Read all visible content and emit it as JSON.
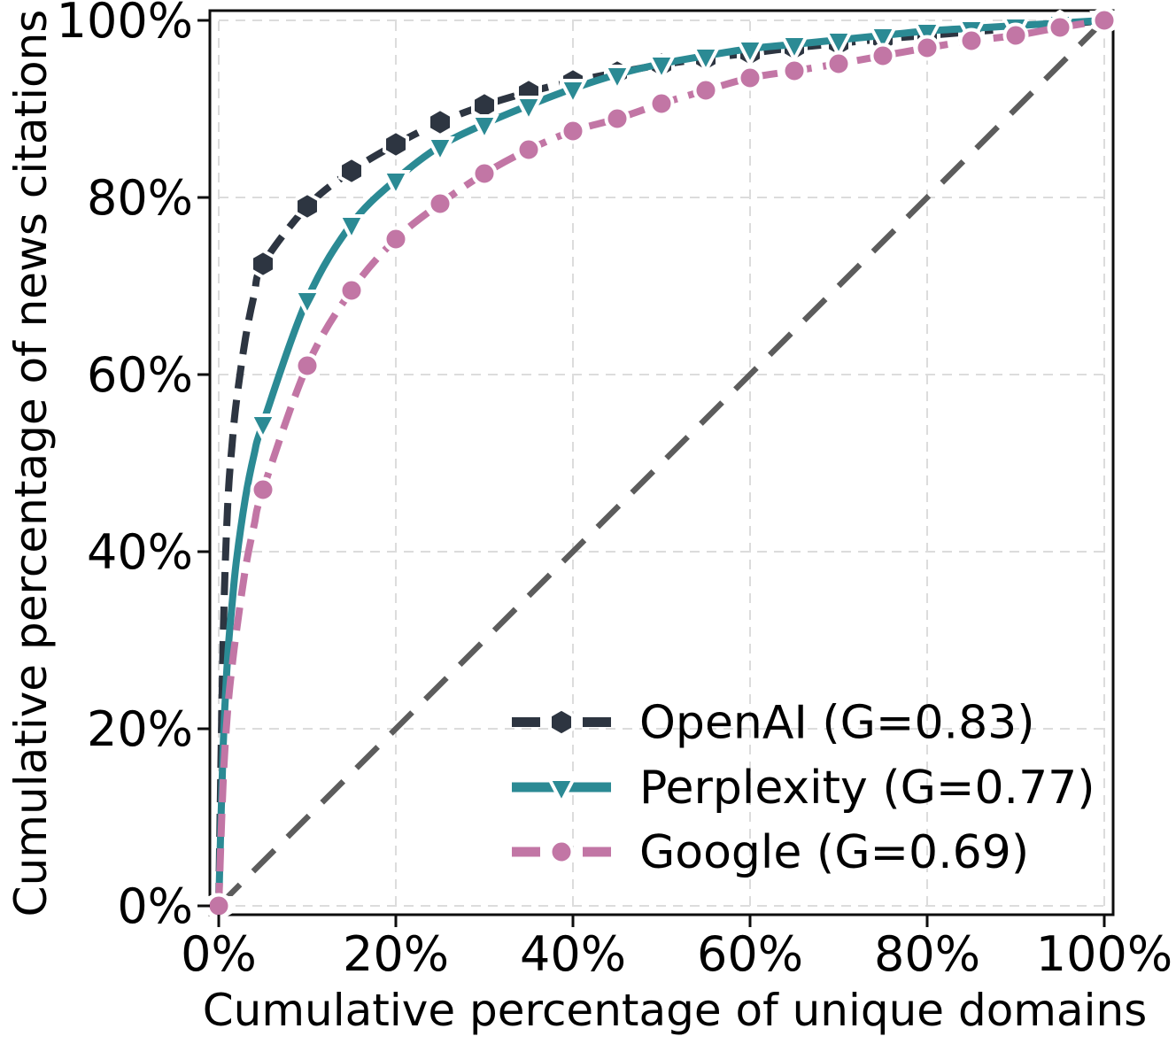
{
  "figure": {
    "background": "#ffffff",
    "text_color": "#000000",
    "grid_color": "#dcdcdc",
    "spine_color": "#0d0d0d",
    "equality_line_color": "#5c5c5c"
  },
  "chart_data": {
    "type": "line",
    "title": "",
    "xlabel": "Cumulative percentage of unique domains",
    "ylabel": "Cumulative percentage of news citations",
    "xlim": [
      0,
      100
    ],
    "ylim": [
      0,
      100
    ],
    "grid": true,
    "legend_position": "lower-right",
    "x_tick_values": [
      0,
      20,
      40,
      60,
      80,
      100
    ],
    "x_tick_labels": [
      "0%",
      "20%",
      "40%",
      "60%",
      "80%",
      "100%"
    ],
    "y_tick_values": [
      0,
      20,
      40,
      60,
      80,
      100
    ],
    "y_tick_labels": [
      "0%",
      "20%",
      "40%",
      "60%",
      "80%",
      "100%"
    ],
    "reference_line": {
      "name": "equality-diagonal",
      "x": [
        0,
        100
      ],
      "y": [
        0,
        100
      ],
      "color": "#5c5c5c",
      "linestyle": "dashed"
    },
    "marker_interval_percent": 5,
    "x": [
      0,
      0.5,
      1,
      1.5,
      2,
      3,
      4,
      5,
      10,
      15,
      20,
      25,
      30,
      35,
      40,
      45,
      50,
      55,
      60,
      65,
      70,
      75,
      80,
      85,
      90,
      95,
      100
    ],
    "series": [
      {
        "name": "OpenAI (G=0.83)",
        "provider": "OpenAI",
        "gini": 0.83,
        "color": "#2d3541",
        "marker": "hexagon",
        "linestyle": "dashed",
        "y": [
          0,
          30,
          45,
          52,
          57,
          64,
          69,
          72.5,
          79,
          83,
          86,
          88.5,
          90.4,
          91.9,
          93.1,
          94.1,
          95.0,
          95.7,
          96.3,
          96.9,
          97.4,
          97.9,
          98.3,
          98.7,
          99.1,
          99.5,
          100
        ]
      },
      {
        "name": "Perplexity (G=0.77)",
        "provider": "Perplexity",
        "gini": 0.77,
        "color": "#2b8a94",
        "marker": "triangle-down",
        "linestyle": "solid",
        "y": [
          0,
          18,
          28,
          34,
          39,
          46,
          51,
          54.5,
          68.5,
          77,
          82,
          85.8,
          88.3,
          90.4,
          92.3,
          93.9,
          95.1,
          96.0,
          96.8,
          97.3,
          97.8,
          98.3,
          98.8,
          99.1,
          99.4,
          99.7,
          100
        ]
      },
      {
        "name": "Google (G=0.69)",
        "provider": "Google",
        "gini": 0.69,
        "color": "#c276a5",
        "marker": "circle",
        "linestyle": "dashed",
        "y": [
          0,
          14,
          22,
          27,
          31,
          38,
          43,
          47,
          61,
          69.5,
          75.3,
          79.3,
          82.7,
          85.4,
          87.5,
          88.9,
          90.6,
          92.1,
          93.5,
          94.3,
          95.1,
          96.0,
          96.9,
          97.7,
          98.3,
          99.2,
          100
        ]
      }
    ]
  }
}
